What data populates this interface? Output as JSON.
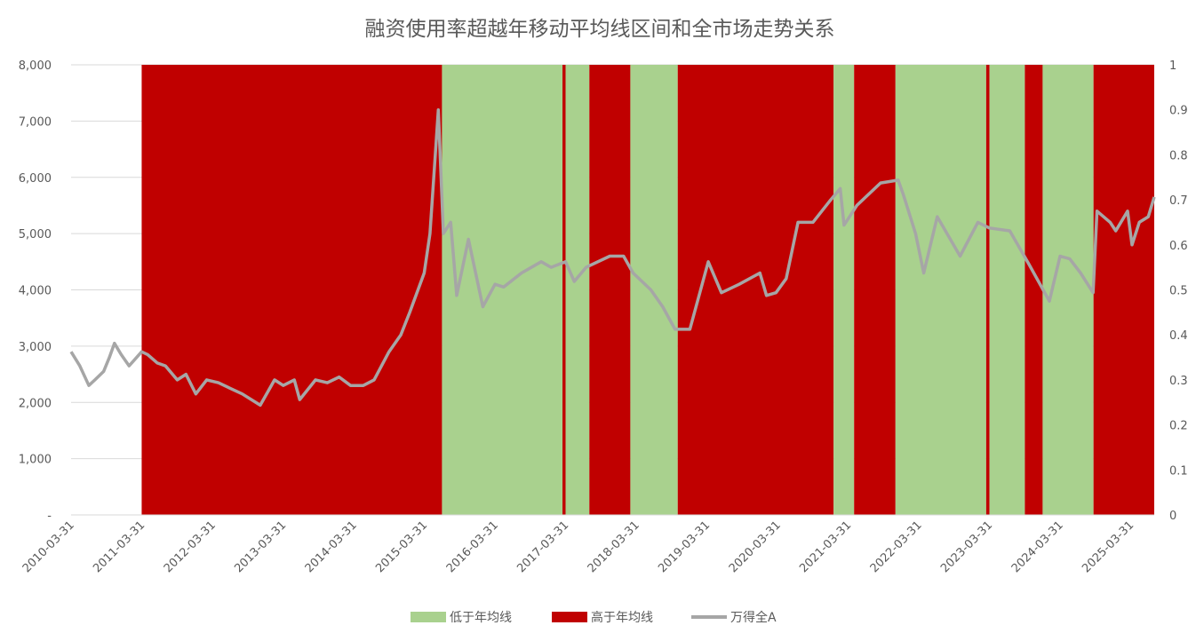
{
  "chart_data": {
    "type": "area",
    "title": "融资使用率超越年移动平均线区间和全市场走势关系",
    "xlabel": "",
    "ylabel": "",
    "ylim": [
      0,
      8000
    ],
    "y2lim": [
      0,
      1
    ],
    "grid": true,
    "legend_position": "bottom",
    "x_tick_labels": [
      "2010-03-31",
      "2011-03-31",
      "2012-03-31",
      "2013-03-31",
      "2014-03-31",
      "2015-03-31",
      "2016-03-31",
      "2017-03-31",
      "2018-03-31",
      "2019-03-31",
      "2020-03-31",
      "2021-03-31",
      "2022-03-31",
      "2023-03-31",
      "2024-03-31",
      "2025-03-31"
    ],
    "y_tick_labels": [
      "-",
      "1,000",
      "2,000",
      "3,000",
      "4,000",
      "5,000",
      "6,000",
      "7,000",
      "8,000"
    ],
    "y2_tick_labels": [
      "0",
      "0.1",
      "0.2",
      "0.3",
      "0.4",
      "0.5",
      "0.6",
      "0.7",
      "0.8",
      "0.9",
      "1"
    ],
    "x_start": "2010-03-31",
    "x_end": "2025-07-31",
    "regions": [
      {
        "series": "高于年均线",
        "start": "2011-03-31",
        "end": "2015-07-01"
      },
      {
        "series": "低于年均线",
        "start": "2015-07-01",
        "end": "2017-03-15"
      },
      {
        "series": "高于年均线",
        "start": "2017-03-15",
        "end": "2017-03-31"
      },
      {
        "series": "低于年均线",
        "start": "2017-03-31",
        "end": "2017-08-01"
      },
      {
        "series": "高于年均线",
        "start": "2017-08-01",
        "end": "2018-03-01"
      },
      {
        "series": "低于年均线",
        "start": "2018-03-01",
        "end": "2018-11-01"
      },
      {
        "series": "高于年均线",
        "start": "2018-11-01",
        "end": "2021-01-15"
      },
      {
        "series": "低于年均线",
        "start": "2021-01-15",
        "end": "2021-05-01"
      },
      {
        "series": "高于年均线",
        "start": "2021-05-01",
        "end": "2021-12-01"
      },
      {
        "series": "低于年均线",
        "start": "2021-12-01",
        "end": "2023-03-15"
      },
      {
        "series": "高于年均线",
        "start": "2023-03-15",
        "end": "2023-04-01"
      },
      {
        "series": "低于年均线",
        "start": "2023-04-01",
        "end": "2023-10-01"
      },
      {
        "series": "高于年均线",
        "start": "2023-10-01",
        "end": "2024-01-01"
      },
      {
        "series": "低于年均线",
        "start": "2024-01-01",
        "end": "2024-09-20"
      },
      {
        "series": "高于年均线",
        "start": "2024-09-20",
        "end": "2025-07-31"
      }
    ],
    "series": [
      {
        "name": "低于年均线",
        "color": "#A9D18E",
        "axis": "right"
      },
      {
        "name": "高于年均线",
        "color": "#C00000",
        "axis": "right"
      },
      {
        "name": "万得全A",
        "color": "#A6A6A6",
        "axis": "left",
        "points": [
          [
            "2010-03-31",
            2900
          ],
          [
            "2010-05-15",
            2650
          ],
          [
            "2010-07-01",
            2300
          ],
          [
            "2010-08-01",
            2400
          ],
          [
            "2010-09-15",
            2550
          ],
          [
            "2010-10-15",
            2800
          ],
          [
            "2010-11-10",
            3050
          ],
          [
            "2010-12-15",
            2850
          ],
          [
            "2011-01-25",
            2650
          ],
          [
            "2011-03-31",
            2900
          ],
          [
            "2011-05-01",
            2850
          ],
          [
            "2011-06-20",
            2700
          ],
          [
            "2011-08-01",
            2650
          ],
          [
            "2011-10-01",
            2400
          ],
          [
            "2011-11-15",
            2500
          ],
          [
            "2012-01-05",
            2150
          ],
          [
            "2012-03-01",
            2400
          ],
          [
            "2012-05-01",
            2350
          ],
          [
            "2012-07-01",
            2250
          ],
          [
            "2012-09-01",
            2150
          ],
          [
            "2012-12-03",
            1950
          ],
          [
            "2013-02-15",
            2400
          ],
          [
            "2013-04-01",
            2300
          ],
          [
            "2013-05-28",
            2400
          ],
          [
            "2013-06-25",
            2050
          ],
          [
            "2013-09-15",
            2400
          ],
          [
            "2013-11-15",
            2350
          ],
          [
            "2014-01-15",
            2450
          ],
          [
            "2014-03-15",
            2300
          ],
          [
            "2014-05-20",
            2300
          ],
          [
            "2014-07-15",
            2400
          ],
          [
            "2014-09-30",
            2900
          ],
          [
            "2014-11-30",
            3200
          ],
          [
            "2015-01-15",
            3600
          ],
          [
            "2015-03-31",
            4300
          ],
          [
            "2015-04-30",
            5000
          ],
          [
            "2015-06-12",
            7200
          ],
          [
            "2015-07-08",
            5000
          ],
          [
            "2015-08-15",
            5200
          ],
          [
            "2015-09-15",
            3900
          ],
          [
            "2015-11-15",
            4900
          ],
          [
            "2016-01-28",
            3700
          ],
          [
            "2016-03-31",
            4100
          ],
          [
            "2016-05-15",
            4050
          ],
          [
            "2016-08-15",
            4300
          ],
          [
            "2016-11-25",
            4500
          ],
          [
            "2017-01-15",
            4400
          ],
          [
            "2017-03-31",
            4500
          ],
          [
            "2017-05-15",
            4150
          ],
          [
            "2017-07-15",
            4400
          ],
          [
            "2017-11-15",
            4600
          ],
          [
            "2018-01-25",
            4600
          ],
          [
            "2018-03-15",
            4300
          ],
          [
            "2018-06-15",
            4000
          ],
          [
            "2018-08-15",
            3700
          ],
          [
            "2018-10-18",
            3300
          ],
          [
            "2019-01-03",
            3300
          ],
          [
            "2019-04-08",
            4500
          ],
          [
            "2019-06-15",
            3950
          ],
          [
            "2019-09-15",
            4100
          ],
          [
            "2019-12-31",
            4300
          ],
          [
            "2020-02-03",
            3900
          ],
          [
            "2020-03-23",
            3950
          ],
          [
            "2020-05-15",
            4200
          ],
          [
            "2020-07-15",
            5200
          ],
          [
            "2020-09-30",
            5200
          ],
          [
            "2020-12-31",
            5600
          ],
          [
            "2021-02-18",
            5800
          ],
          [
            "2021-03-10",
            5150
          ],
          [
            "2021-05-15",
            5500
          ],
          [
            "2021-09-15",
            5900
          ],
          [
            "2021-12-15",
            5950
          ],
          [
            "2022-01-10",
            5700
          ],
          [
            "2022-03-15",
            5000
          ],
          [
            "2022-04-26",
            4300
          ],
          [
            "2022-07-05",
            5300
          ],
          [
            "2022-10-31",
            4600
          ],
          [
            "2023-01-31",
            5200
          ],
          [
            "2023-03-31",
            5100
          ],
          [
            "2023-07-15",
            5050
          ],
          [
            "2023-10-23",
            4450
          ],
          [
            "2024-02-05",
            3800
          ],
          [
            "2024-03-31",
            4600
          ],
          [
            "2024-05-20",
            4550
          ],
          [
            "2024-07-15",
            4300
          ],
          [
            "2024-09-18",
            3950
          ],
          [
            "2024-10-08",
            5400
          ],
          [
            "2024-12-15",
            5200
          ],
          [
            "2025-01-13",
            5050
          ],
          [
            "2025-03-15",
            5400
          ],
          [
            "2025-04-07",
            4800
          ],
          [
            "2025-05-15",
            5200
          ],
          [
            "2025-06-30",
            5300
          ],
          [
            "2025-07-31",
            5650
          ]
        ]
      }
    ]
  }
}
